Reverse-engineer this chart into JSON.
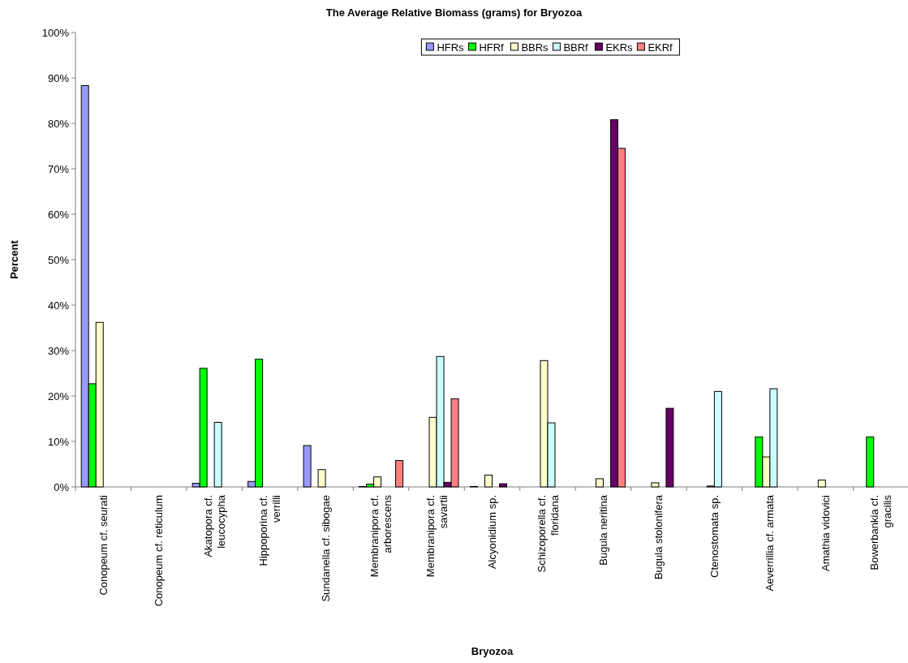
{
  "chart_data": {
    "type": "bar",
    "title": "The Average Relative Biomass (grams) for Bryozoa",
    "xlabel": "Bryozoa",
    "ylabel": "Percent",
    "categories": [
      "Conopeum cf. seurati",
      "Conopeum cf. reticulum",
      "Akatopora cf. leucocypha",
      "Hippoporina cf. verrilli",
      "Sundanella cf. sibogae",
      "Membranipora cf. arborescens",
      "Membranipora cf. savartii",
      "Alcyonidium sp.",
      "Schizoporella cf. floridana",
      "Bugula neritina",
      "Bugula stolonifera",
      "Ctenostomata sp.",
      "Aeverrillia cf. armata",
      "Amathia vidovici",
      "Bowerbankia cf. gracilis"
    ],
    "series": [
      {
        "name": "HFRs",
        "color": "#9999ff",
        "values": [
          88.3,
          null,
          0.8,
          1.2,
          9.1,
          0.1,
          null,
          0.1,
          null,
          null,
          null,
          null,
          null,
          null,
          null
        ]
      },
      {
        "name": "HFRf",
        "color": "#00ff00",
        "values": [
          22.7,
          null,
          26.1,
          28.1,
          null,
          0.6,
          null,
          null,
          null,
          null,
          null,
          null,
          11.0,
          null,
          11.0
        ]
      },
      {
        "name": "BBRs",
        "color": "#ffffcc",
        "values": [
          36.2,
          null,
          null,
          null,
          3.8,
          2.2,
          15.3,
          2.6,
          27.8,
          1.8,
          0.9,
          0.2,
          6.6,
          1.5,
          null
        ]
      },
      {
        "name": "BBRf",
        "color": "#ccffff",
        "values": [
          null,
          null,
          14.2,
          null,
          null,
          null,
          28.7,
          null,
          14.1,
          null,
          null,
          21.0,
          21.6,
          null,
          null
        ]
      },
      {
        "name": "EKRs",
        "color": "#660066",
        "values": [
          null,
          null,
          null,
          null,
          null,
          null,
          1.0,
          0.7,
          null,
          80.8,
          17.3,
          null,
          null,
          null,
          null
        ]
      },
      {
        "name": "EKRf",
        "color": "#ff8080",
        "values": [
          null,
          null,
          null,
          null,
          null,
          5.8,
          19.4,
          null,
          null,
          74.5,
          null,
          null,
          null,
          null,
          null
        ]
      }
    ],
    "ylim": [
      0,
      100
    ],
    "yticks": [
      {
        "value": 0,
        "label": "0%"
      },
      {
        "value": 10,
        "label": "10%"
      },
      {
        "value": 20,
        "label": "20%"
      },
      {
        "value": 30,
        "label": "30%"
      },
      {
        "value": 40,
        "label": "40%"
      },
      {
        "value": 50,
        "label": "50%"
      },
      {
        "value": 60,
        "label": "60%"
      },
      {
        "value": 70,
        "label": "70%"
      },
      {
        "value": 80,
        "label": "80%"
      },
      {
        "value": 90,
        "label": "90%"
      },
      {
        "value": 100,
        "label": "100%"
      }
    ],
    "grid": false,
    "legend": "top"
  }
}
